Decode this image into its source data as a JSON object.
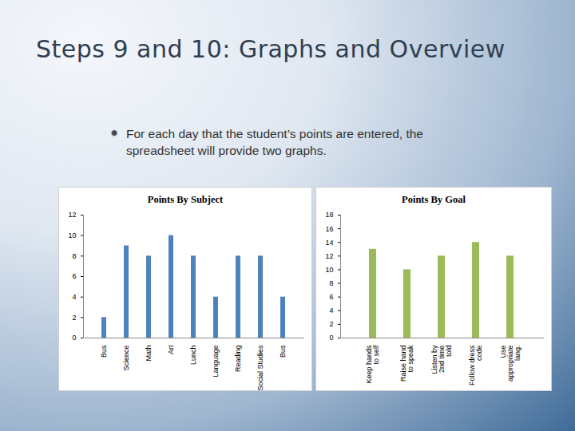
{
  "header": {
    "title": "Steps 9 and 10: Graphs and Overview",
    "bullets": [
      "For each day that the student’s points are entered, the spreadsheet will provide two graphs."
    ]
  },
  "chart_data": [
    {
      "type": "bar",
      "title": "Points By Subject",
      "categories": [
        "Bus",
        "Science",
        "Math",
        "Art",
        "Lunch",
        "Language",
        "Reading",
        "Social Studies",
        "Bus"
      ],
      "values": [
        2,
        9,
        8,
        10,
        8,
        4,
        8,
        8,
        4
      ],
      "color": "#4f81bd",
      "ylim": [
        0,
        12
      ],
      "yticks": [
        0,
        2,
        4,
        6,
        8,
        10,
        12
      ]
    },
    {
      "type": "bar",
      "title": "Points By Goal",
      "categories": [
        "Keep hands to self",
        "Raise hand to speak",
        "Listen by 2nd time told",
        "Follow dress code",
        "Use appropriate lang."
      ],
      "values": [
        13,
        10,
        12,
        14,
        12
      ],
      "color": "#9bbb59",
      "ylim": [
        0,
        18
      ],
      "yticks": [
        0,
        2,
        4,
        6,
        8,
        10,
        12,
        14,
        16,
        18
      ]
    }
  ]
}
